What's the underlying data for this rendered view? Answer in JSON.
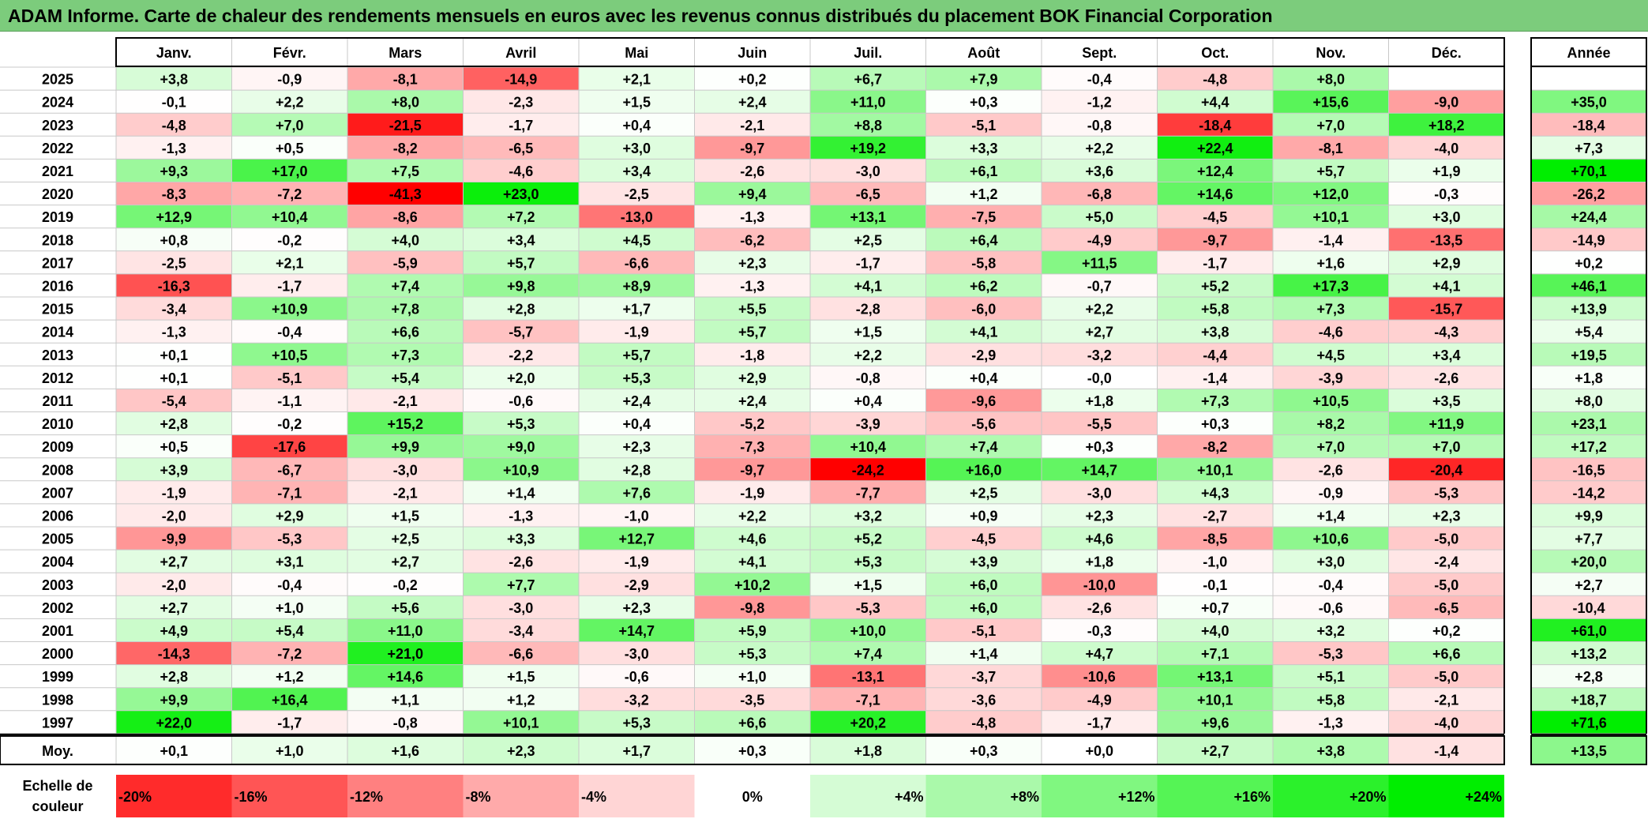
{
  "title": "ADAM Informe. Carte de chaleur des rendements mensuels en euros avec les revenus connus distribués du placement BOK Financial Corporation",
  "chart_data": {
    "type": "heatmap",
    "columns": [
      "Janv.",
      "Févr.",
      "Mars",
      "Avril",
      "Mai",
      "Juin",
      "Juil.",
      "Août",
      "Sept.",
      "Oct.",
      "Nov.",
      "Déc."
    ],
    "year_column": "Année",
    "avg_label": "Moy.",
    "rows": [
      {
        "year": "2025",
        "values": [
          3.8,
          -0.9,
          -8.1,
          -14.9,
          2.1,
          0.2,
          6.7,
          7.9,
          -0.4,
          -4.8,
          8.0,
          null
        ],
        "annual": null
      },
      {
        "year": "2024",
        "values": [
          -0.1,
          2.2,
          8.0,
          -2.3,
          1.5,
          2.4,
          11.0,
          0.3,
          -1.2,
          4.4,
          15.6,
          -9.0
        ],
        "annual": 35.0
      },
      {
        "year": "2023",
        "values": [
          -4.8,
          7.0,
          -21.5,
          -1.7,
          0.4,
          -2.1,
          8.8,
          -5.1,
          -0.8,
          -18.4,
          7.0,
          18.2
        ],
        "annual": -18.4
      },
      {
        "year": "2022",
        "values": [
          -1.3,
          0.5,
          -8.2,
          -6.5,
          3.0,
          -9.7,
          19.2,
          3.3,
          2.2,
          22.4,
          -8.1,
          -4.0
        ],
        "annual": 7.3
      },
      {
        "year": "2021",
        "values": [
          9.3,
          17.0,
          7.5,
          -4.6,
          3.4,
          -2.6,
          -3.0,
          6.1,
          3.6,
          12.4,
          5.7,
          1.9
        ],
        "annual": 70.1
      },
      {
        "year": "2020",
        "values": [
          -8.3,
          -7.2,
          -41.3,
          23.0,
          -2.5,
          9.4,
          -6.5,
          1.2,
          -6.8,
          14.6,
          12.0,
          -0.3
        ],
        "annual": -26.2
      },
      {
        "year": "2019",
        "values": [
          12.9,
          10.4,
          -8.6,
          7.2,
          -13.0,
          -1.3,
          13.1,
          -7.5,
          5.0,
          -4.5,
          10.1,
          3.0
        ],
        "annual": 24.4
      },
      {
        "year": "2018",
        "values": [
          0.8,
          -0.2,
          4.0,
          3.4,
          4.5,
          -6.2,
          2.5,
          6.4,
          -4.9,
          -9.7,
          -1.4,
          -13.5
        ],
        "annual": -14.9
      },
      {
        "year": "2017",
        "values": [
          -2.5,
          2.1,
          -5.9,
          5.7,
          -6.6,
          2.3,
          -1.7,
          -5.8,
          11.5,
          -1.7,
          1.6,
          2.9
        ],
        "annual": 0.2
      },
      {
        "year": "2016",
        "values": [
          -16.3,
          -1.7,
          7.4,
          9.8,
          8.9,
          -1.3,
          4.1,
          6.2,
          -0.7,
          5.2,
          17.3,
          4.1
        ],
        "annual": 46.1
      },
      {
        "year": "2015",
        "values": [
          -3.4,
          10.9,
          7.8,
          2.8,
          1.7,
          5.5,
          -2.8,
          -6.0,
          2.2,
          5.8,
          7.3,
          -15.7
        ],
        "annual": 13.9
      },
      {
        "year": "2014",
        "values": [
          -1.3,
          -0.4,
          6.6,
          -5.7,
          -1.9,
          5.7,
          1.5,
          4.1,
          2.7,
          3.8,
          -4.6,
          -4.3
        ],
        "annual": 5.4
      },
      {
        "year": "2013",
        "values": [
          0.1,
          10.5,
          7.3,
          -2.2,
          5.7,
          -1.8,
          2.2,
          -2.9,
          -3.2,
          -4.4,
          4.5,
          3.4
        ],
        "annual": 19.5
      },
      {
        "year": "2012",
        "values": [
          0.1,
          -5.1,
          5.4,
          2.0,
          5.3,
          2.9,
          -0.8,
          0.4,
          "-0,0",
          -1.4,
          -3.9,
          -2.6
        ],
        "annual": 1.8
      },
      {
        "year": "2011",
        "values": [
          -5.4,
          -1.1,
          -2.1,
          -0.6,
          2.4,
          2.4,
          0.4,
          -9.6,
          1.8,
          7.3,
          10.5,
          3.5
        ],
        "annual": 8.0
      },
      {
        "year": "2010",
        "values": [
          2.8,
          -0.2,
          15.2,
          5.3,
          0.4,
          -5.2,
          -3.9,
          -5.6,
          -5.5,
          0.3,
          8.2,
          11.9
        ],
        "annual": 23.1
      },
      {
        "year": "2009",
        "values": [
          0.5,
          -17.6,
          9.9,
          9.0,
          2.3,
          -7.3,
          10.4,
          7.4,
          0.3,
          -8.2,
          7.0,
          7.0
        ],
        "annual": 17.2
      },
      {
        "year": "2008",
        "values": [
          3.9,
          -6.7,
          -3.0,
          10.9,
          2.8,
          -9.7,
          -24.2,
          16.0,
          14.7,
          10.1,
          -2.6,
          -20.4
        ],
        "annual": -16.5
      },
      {
        "year": "2007",
        "values": [
          -1.9,
          -7.1,
          -2.1,
          1.4,
          7.6,
          -1.9,
          -7.7,
          2.5,
          -3.0,
          4.3,
          -0.9,
          -5.3
        ],
        "annual": -14.2
      },
      {
        "year": "2006",
        "values": [
          -2.0,
          2.9,
          1.5,
          -1.3,
          -1.0,
          2.2,
          3.2,
          0.9,
          2.3,
          -2.7,
          1.4,
          2.3
        ],
        "annual": 9.9
      },
      {
        "year": "2005",
        "values": [
          -9.9,
          -5.3,
          2.5,
          3.3,
          12.7,
          4.6,
          5.2,
          -4.5,
          4.6,
          -8.5,
          10.6,
          -5.0
        ],
        "annual": 7.7
      },
      {
        "year": "2004",
        "values": [
          2.7,
          3.1,
          2.7,
          -2.6,
          -1.9,
          4.1,
          5.3,
          3.9,
          1.8,
          -1.0,
          3.0,
          -2.4
        ],
        "annual": 20.0
      },
      {
        "year": "2003",
        "values": [
          -2.0,
          -0.4,
          -0.2,
          7.7,
          -2.9,
          10.2,
          1.5,
          6.0,
          -10.0,
          -0.1,
          -0.4,
          -5.0
        ],
        "annual": 2.7
      },
      {
        "year": "2002",
        "values": [
          2.7,
          1.0,
          5.6,
          -3.0,
          2.3,
          -9.8,
          -5.3,
          6.0,
          -2.6,
          0.7,
          -0.6,
          -6.5
        ],
        "annual": -10.4
      },
      {
        "year": "2001",
        "values": [
          4.9,
          5.4,
          11.0,
          -3.4,
          14.7,
          5.9,
          10.0,
          -5.1,
          -0.3,
          4.0,
          3.2,
          0.2
        ],
        "annual": 61.0
      },
      {
        "year": "2000",
        "values": [
          -14.3,
          -7.2,
          21.0,
          -6.6,
          -3.0,
          5.3,
          7.4,
          1.4,
          4.7,
          7.1,
          -5.3,
          6.6
        ],
        "annual": 13.2
      },
      {
        "year": "1999",
        "values": [
          2.8,
          1.2,
          14.6,
          1.5,
          -0.6,
          1.0,
          -13.1,
          -3.7,
          -10.6,
          13.1,
          5.1,
          -5.0
        ],
        "annual": 2.8
      },
      {
        "year": "1998",
        "values": [
          9.9,
          16.4,
          1.1,
          1.2,
          -3.2,
          -3.5,
          -7.1,
          -3.6,
          -4.9,
          10.1,
          5.8,
          -2.1
        ],
        "annual": 18.7
      },
      {
        "year": "1997",
        "values": [
          22.0,
          -1.7,
          -0.8,
          10.1,
          5.3,
          6.6,
          20.2,
          -4.8,
          -1.7,
          9.6,
          -1.3,
          -4.0
        ],
        "annual": 71.6
      }
    ],
    "averages": [
      0.1,
      1.0,
      1.6,
      2.3,
      1.7,
      0.3,
      1.8,
      0.3,
      0.0,
      2.7,
      3.8,
      -1.4
    ],
    "avg_annual": 13.5,
    "scale": {
      "label": "Echelle de couleur",
      "stops": [
        -20,
        -16,
        -12,
        -8,
        -4,
        0,
        4,
        8,
        12,
        16,
        20,
        24
      ],
      "labels": [
        "-20%",
        "-16%",
        "-12%",
        "-8%",
        "-4%",
        "0%",
        "+4%",
        "+8%",
        "+12%",
        "+16%",
        "+20%",
        "+24%"
      ]
    },
    "colors": {
      "negative": "#ff0000",
      "positive": "#00ee00",
      "neutral": "#ffffff",
      "title_bg": "#7ccc7c"
    }
  }
}
